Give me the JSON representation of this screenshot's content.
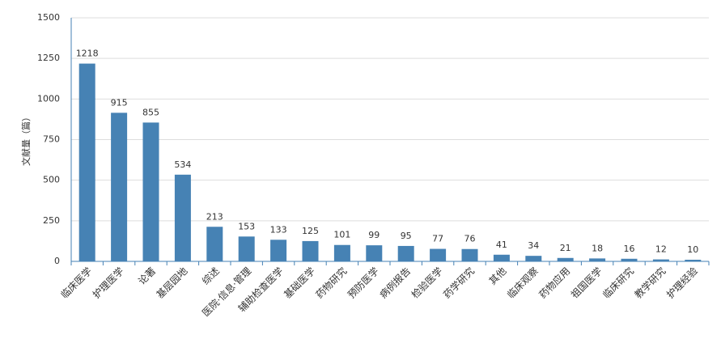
{
  "chart_data": {
    "type": "bar",
    "y_label": "文献量（篇）",
    "categories": [
      "临床医学",
      "护理医学",
      "论著",
      "基层园地",
      "综述",
      "医院·信息·管理",
      "辅助检查医学",
      "基础医学",
      "药物研究",
      "预防医学",
      "病例报告",
      "检验医学",
      "药学研究",
      "其他",
      "临床观察",
      "药物应用",
      "祖国医学",
      "临床研究",
      "教学研究",
      "护理经验"
    ],
    "values": [
      1218,
      915,
      855,
      534,
      213,
      153,
      133,
      125,
      101,
      99,
      95,
      77,
      76,
      41,
      34,
      21,
      18,
      16,
      12,
      10
    ],
    "color": "#4682b4",
    "ylim": [
      0,
      1500
    ],
    "yticks": [
      0,
      250,
      500,
      750,
      1000,
      1250,
      1500
    ],
    "grid": true
  }
}
